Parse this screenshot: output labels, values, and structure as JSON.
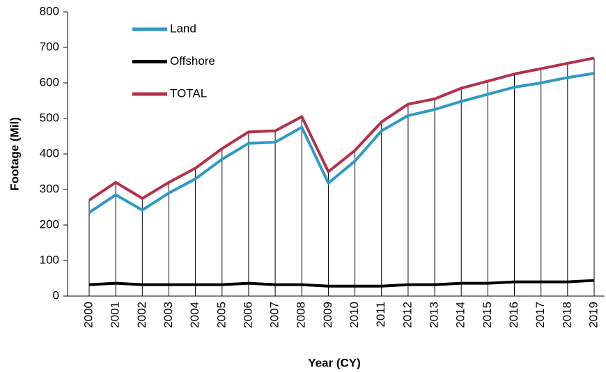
{
  "chart_data": {
    "type": "line",
    "x_label": "Year (CY)",
    "y_label": "Footage (Mil)",
    "categories": [
      "2000",
      "2001",
      "2002",
      "2003",
      "2004",
      "2005",
      "2006",
      "2007",
      "2008",
      "2009",
      "2010",
      "2011",
      "2012",
      "2013",
      "2014",
      "2015",
      "2016",
      "2017",
      "2018",
      "2019"
    ],
    "series": [
      {
        "name": "Land",
        "color": "#2e9ac6",
        "values": [
          235,
          285,
          242,
          290,
          330,
          385,
          430,
          433,
          475,
          318,
          380,
          465,
          508,
          525,
          548,
          568,
          588,
          600,
          615,
          627
        ]
      },
      {
        "name": "Offshore",
        "color": "#000000",
        "values": [
          32,
          36,
          32,
          32,
          32,
          32,
          36,
          32,
          32,
          28,
          28,
          28,
          32,
          32,
          36,
          36,
          40,
          40,
          40,
          44
        ]
      },
      {
        "name": "TOTAL",
        "color": "#b5304a",
        "values": [
          270,
          320,
          275,
          320,
          360,
          415,
          462,
          465,
          505,
          350,
          410,
          490,
          540,
          555,
          585,
          605,
          625,
          640,
          655,
          670
        ]
      }
    ],
    "drop_lines": true,
    "ylim": [
      0,
      800
    ],
    "yticks": [
      0,
      100,
      200,
      300,
      400,
      500,
      600,
      700,
      800
    ],
    "legend": "upper left"
  }
}
